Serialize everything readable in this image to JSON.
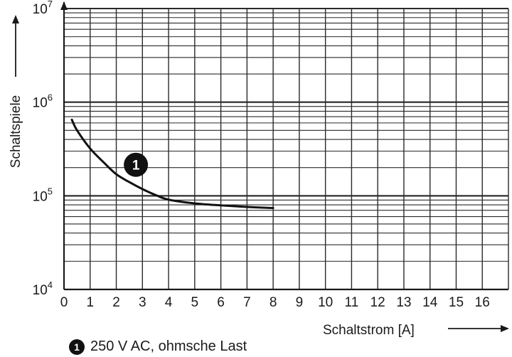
{
  "chart_data": {
    "type": "line",
    "xlabel": "Schaltstrom [A]",
    "ylabel": "Schaltspiele",
    "x_ticks": [
      0,
      1,
      2,
      3,
      4,
      5,
      6,
      7,
      8,
      9,
      10,
      11,
      12,
      13,
      14,
      15,
      16
    ],
    "xlim": [
      0,
      17
    ],
    "y_scale": "log",
    "ylim": [
      10000,
      10000000
    ],
    "y_ticks": [
      {
        "value": 10000,
        "base": "10",
        "exp": "4"
      },
      {
        "value": 100000,
        "base": "10",
        "exp": "5"
      },
      {
        "value": 1000000,
        "base": "10",
        "exp": "6"
      },
      {
        "value": 10000000,
        "base": "10",
        "exp": "7"
      }
    ],
    "grid": true,
    "series": [
      {
        "marker": "1",
        "color": "#111111",
        "x": [
          0.3,
          0.5,
          1.0,
          1.5,
          2.0,
          2.5,
          3.0,
          3.5,
          4.0,
          5.0,
          6.0,
          7.0,
          8.0
        ],
        "y": [
          650000,
          500000,
          320000,
          230000,
          170000,
          140000,
          118000,
          102000,
          91000,
          83000,
          79000,
          76000,
          74000
        ]
      }
    ],
    "legend": [
      {
        "marker": "1",
        "label": "250 V AC, ohmsche Last"
      }
    ],
    "legend_position": "bottom-left"
  }
}
